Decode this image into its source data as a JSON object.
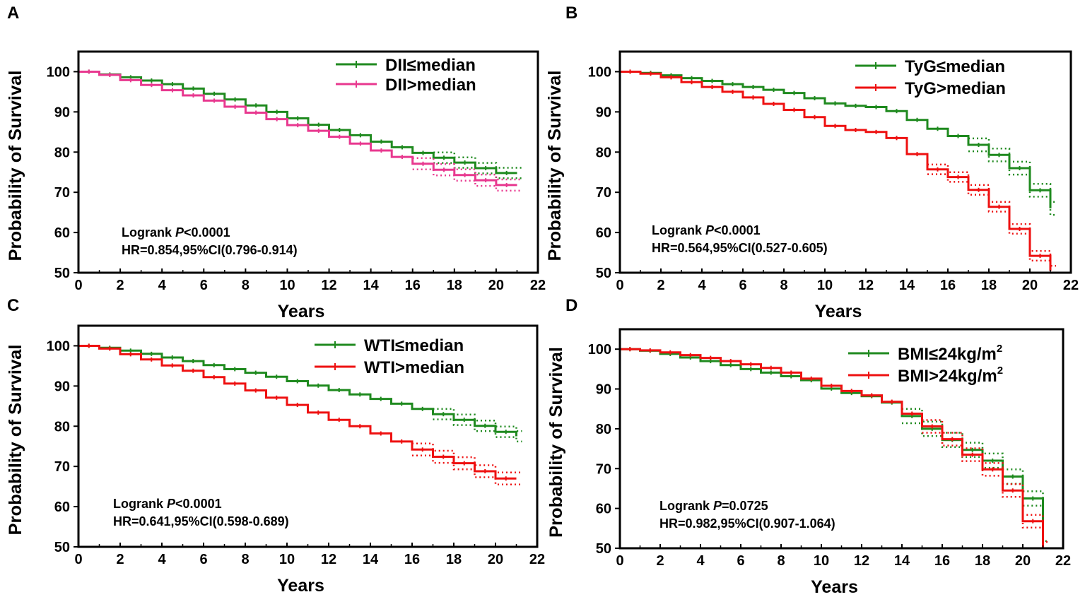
{
  "figure": {
    "panel_labels": [
      "A",
      "B",
      "C",
      "D"
    ],
    "colors": {
      "green": "#1f8a1f",
      "red": "#ee1111",
      "pink": "#e8388f",
      "axis": "#000000"
    }
  },
  "chart_data": [
    {
      "panel": "A",
      "type": "line",
      "title": "",
      "xlabel": "Years",
      "ylabel": "Probability of Survival",
      "xlim": [
        0,
        22
      ],
      "ylim": [
        50,
        105
      ],
      "xticks": [
        0,
        2,
        4,
        6,
        8,
        10,
        12,
        14,
        16,
        18,
        20,
        22
      ],
      "yticks": [
        50,
        60,
        70,
        80,
        90,
        100
      ],
      "legend_position": "top-right",
      "annotation": {
        "line1_prefix": "Logrank ",
        "line1_italic": "P",
        "line1_suffix": "<0.0001",
        "line2": "HR=0.854,95%CI(0.796-0.914)"
      },
      "series": [
        {
          "name": "DII≤median",
          "legend": "DII≤median",
          "color": "#1f8a1f",
          "x": [
            0,
            1,
            2,
            3,
            4,
            5,
            6,
            7,
            8,
            9,
            10,
            11,
            12,
            13,
            14,
            15,
            16,
            17,
            18,
            19,
            20,
            21
          ],
          "y": [
            100,
            99.3,
            98.6,
            97.8,
            96.9,
            95.8,
            94.5,
            93.1,
            91.6,
            90.0,
            88.4,
            86.8,
            85.5,
            84.2,
            82.6,
            81.2,
            79.8,
            78.6,
            77.4,
            76.0,
            74.8,
            74.8
          ],
          "ci_from": 17,
          "ci_width": 1.3
        },
        {
          "name": "DII>median",
          "legend": "DII>median",
          "color": "#e8388f",
          "x": [
            0,
            1,
            2,
            3,
            4,
            5,
            6,
            7,
            8,
            9,
            10,
            11,
            12,
            13,
            14,
            15,
            16,
            17,
            18,
            19,
            20,
            21
          ],
          "y": [
            100,
            99.2,
            97.9,
            96.7,
            95.4,
            94.1,
            92.8,
            91.3,
            89.8,
            88.2,
            86.7,
            85.3,
            83.8,
            82.1,
            80.4,
            78.8,
            77.1,
            75.6,
            74.3,
            73.0,
            71.8,
            71.8
          ],
          "ci_from": 16,
          "ci_width": 1.4
        }
      ]
    },
    {
      "panel": "B",
      "type": "line",
      "title": "",
      "xlabel": "Years",
      "ylabel": "Probability of Survival",
      "xlim": [
        0,
        22
      ],
      "ylim": [
        50,
        105
      ],
      "xticks": [
        0,
        2,
        4,
        6,
        8,
        10,
        12,
        14,
        16,
        18,
        20,
        22
      ],
      "yticks": [
        50,
        60,
        70,
        80,
        90,
        100
      ],
      "legend_position": "top-right",
      "annotation": {
        "line1_prefix": "Logrank ",
        "line1_italic": "P",
        "line1_suffix": "<0.0001",
        "line2": "HR=0.564,95%CI(0.527-0.605)"
      },
      "series": [
        {
          "name": "TyG≤median",
          "legend": "TyG≤median",
          "color": "#1f8a1f",
          "x": [
            0,
            1,
            2,
            3,
            4,
            5,
            6,
            7,
            8,
            9,
            10,
            11,
            12,
            13,
            14,
            15,
            16,
            17,
            18,
            19,
            20,
            21
          ],
          "y": [
            100,
            99.7,
            99.1,
            98.4,
            97.7,
            96.9,
            96.2,
            95.5,
            94.7,
            93.4,
            92.1,
            91.5,
            91.2,
            90.2,
            88.0,
            85.8,
            84.0,
            81.8,
            79.3,
            76.0,
            70.5,
            66.0
          ],
          "ci_from": 17,
          "ci_width": 1.6
        },
        {
          "name": "TyG>median",
          "legend": "TyG>median",
          "color": "#ee1111",
          "x": [
            0,
            1,
            2,
            3,
            4,
            5,
            6,
            7,
            8,
            9,
            10,
            11,
            12,
            13,
            14,
            15,
            16,
            17,
            18,
            19,
            20,
            21
          ],
          "y": [
            100,
            99.5,
            98.6,
            97.4,
            96.2,
            95.0,
            93.6,
            92.0,
            90.5,
            88.7,
            86.5,
            85.5,
            85.0,
            83.5,
            79.5,
            75.7,
            73.8,
            70.6,
            66.4,
            60.9,
            54.2,
            50.5
          ],
          "ci_from": 15,
          "ci_width": 1.2
        }
      ]
    },
    {
      "panel": "C",
      "type": "line",
      "title": "",
      "xlabel": "Years",
      "ylabel": "Probability of Survival",
      "xlim": [
        0,
        22
      ],
      "ylim": [
        50,
        105
      ],
      "xticks": [
        0,
        2,
        4,
        6,
        8,
        10,
        12,
        14,
        16,
        18,
        20,
        22
      ],
      "yticks": [
        50,
        60,
        70,
        80,
        90,
        100
      ],
      "legend_position": "top-right",
      "annotation": {
        "line1_prefix": "Logrank ",
        "line1_italic": "P",
        "line1_suffix": "<0.0001",
        "line2": "HR=0.641,95%CI(0.598-0.689)"
      },
      "series": [
        {
          "name": "WTI≤median",
          "legend": "WTI≤median",
          "color": "#1f8a1f",
          "x": [
            0,
            1,
            2,
            3,
            4,
            5,
            6,
            7,
            8,
            9,
            10,
            11,
            12,
            13,
            14,
            15,
            16,
            17,
            18,
            19,
            20,
            21
          ],
          "y": [
            100,
            99.5,
            98.8,
            98.0,
            97.1,
            96.2,
            95.2,
            94.2,
            93.3,
            92.3,
            91.2,
            90.1,
            89.0,
            87.9,
            86.8,
            85.6,
            84.3,
            83.0,
            81.6,
            80.1,
            78.6,
            77.5
          ],
          "ci_from": 17,
          "ci_width": 1.3
        },
        {
          "name": "WTI>median",
          "legend": "WTI>median",
          "color": "#ee1111",
          "x": [
            0,
            1,
            2,
            3,
            4,
            5,
            6,
            7,
            8,
            9,
            10,
            11,
            12,
            13,
            14,
            15,
            16,
            17,
            18,
            19,
            20,
            21
          ],
          "y": [
            100,
            99.3,
            97.9,
            96.6,
            95.1,
            93.8,
            92.2,
            90.6,
            88.9,
            87.1,
            85.3,
            83.4,
            81.6,
            80.0,
            78.2,
            76.2,
            74.2,
            72.4,
            70.8,
            68.8,
            67.0,
            67.0
          ],
          "ci_from": 16,
          "ci_width": 1.5
        }
      ]
    },
    {
      "panel": "D",
      "type": "line",
      "title": "",
      "xlabel": "Years",
      "ylabel": "Probability of Survival",
      "xlim": [
        0,
        22
      ],
      "ylim": [
        50,
        105
      ],
      "xticks": [
        0,
        2,
        4,
        6,
        8,
        10,
        12,
        14,
        16,
        18,
        20,
        22
      ],
      "yticks": [
        50,
        60,
        70,
        80,
        90,
        100
      ],
      "legend_position": "top-right",
      "annotation": {
        "line1_prefix": "Logrank ",
        "line1_italic": "P",
        "line1_suffix": "=0.0725",
        "line2": "HR=0.982,95%CI(0.907-1.064)"
      },
      "series": [
        {
          "name": "BMI≤24kg/m2",
          "legend": "BMI≤24kg/m",
          "legend_sup": "2",
          "color": "#1f8a1f",
          "x": [
            0,
            1,
            2,
            3,
            4,
            5,
            6,
            7,
            8,
            9,
            10,
            11,
            12,
            13,
            14,
            15,
            16,
            17,
            18,
            19,
            20,
            21
          ],
          "y": [
            100,
            99.6,
            98.8,
            97.9,
            97.0,
            96.0,
            95.0,
            94.1,
            93.2,
            92.2,
            90.1,
            89.0,
            88.2,
            86.6,
            83.2,
            80.0,
            77.2,
            74.7,
            72.0,
            68.0,
            62.5,
            50.0
          ],
          "ci_from": 14,
          "ci_width": 1.8
        },
        {
          "name": "BMI>24kg/m2",
          "legend": "BMI>24kg/m",
          "legend_sup": "2",
          "color": "#ee1111",
          "x": [
            0,
            1,
            2,
            3,
            4,
            5,
            6,
            7,
            8,
            9,
            10,
            11,
            12,
            13,
            14,
            15,
            16,
            17,
            18,
            19,
            20,
            21
          ],
          "y": [
            100,
            99.7,
            99.2,
            98.5,
            97.8,
            97.0,
            96.2,
            95.3,
            94.1,
            92.6,
            90.8,
            89.5,
            88.4,
            86.8,
            83.8,
            80.6,
            77.4,
            73.5,
            69.8,
            64.5,
            56.8,
            50.0
          ],
          "ci_from": 15,
          "ci_width": 1.6
        }
      ]
    }
  ]
}
